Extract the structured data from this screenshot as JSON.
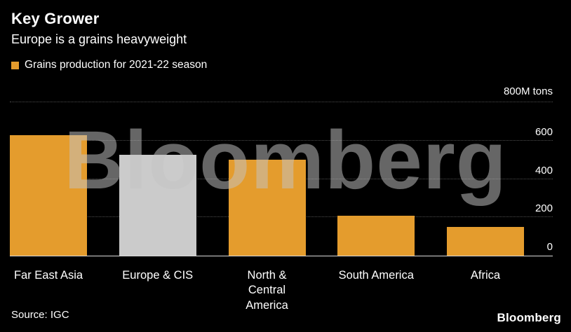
{
  "header": {
    "title": "Key Grower",
    "subtitle": "Europe is a grains heavyweight"
  },
  "legend": {
    "label": "Grains production for 2021-22 season",
    "color": "#E49C2D"
  },
  "axis": {
    "top_label": "800M tons",
    "ticks": [
      600,
      400,
      200,
      0
    ]
  },
  "chart_data": {
    "type": "bar",
    "title": "Key Grower",
    "subtitle": "Europe is a grains heavyweight",
    "series_label": "Grains production for 2021-22 season",
    "categories": [
      "Far East Asia",
      "Europe & CIS",
      "North & Central America",
      "South America",
      "Africa"
    ],
    "values": [
      630,
      525,
      500,
      210,
      150
    ],
    "colors": [
      "#E49C2D",
      "#CBCBCB",
      "#E49C2D",
      "#E49C2D",
      "#E49C2D"
    ],
    "ylabel": "M tons",
    "ylim": [
      0,
      800
    ],
    "gridlines": [
      800,
      600,
      400,
      200
    ],
    "grid": "horizontal-dotted",
    "legend_position": "top-left"
  },
  "watermark": "Bloomberg",
  "footer": {
    "source": "Source: IGC",
    "logo": "Bloomberg"
  }
}
